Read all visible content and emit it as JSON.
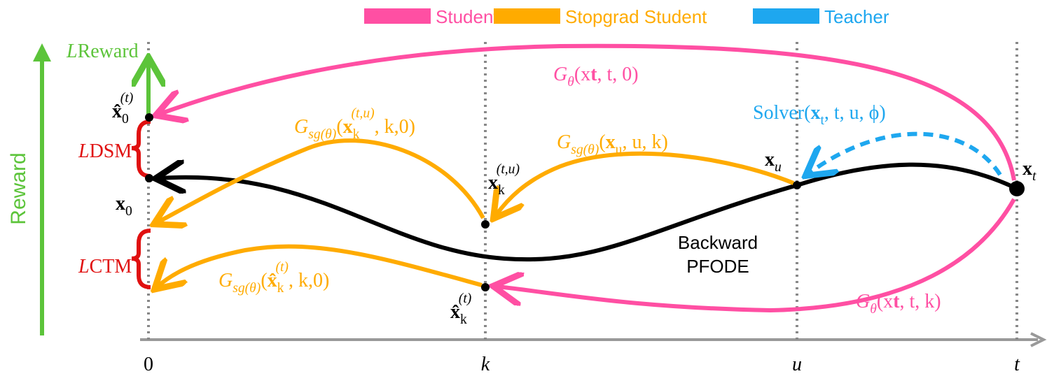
{
  "legend": [
    {
      "name": "Student",
      "color": "#ff4fa3"
    },
    {
      "name": "Stopgrad Student",
      "color": "#ffab00"
    },
    {
      "name": "Teacher",
      "color": "#1ea7ef"
    }
  ],
  "y_axis_label": "Reward",
  "x_axis_labels": [
    "0",
    "k",
    "u",
    "t"
  ],
  "labels": {
    "l_reward": [
      "L",
      "Reward"
    ],
    "x0_hat": [
      "x̂",
      "0",
      "(t)"
    ],
    "l_dsm": [
      "L",
      "DSM"
    ],
    "x0": [
      "x",
      "0"
    ],
    "l_ctm": [
      "L",
      "CTM"
    ],
    "g_theta_top": [
      "G",
      "θ",
      "(",
      "x",
      "t",
      ", t, 0)"
    ],
    "g_sg_k0": [
      "G",
      "sg(θ)",
      "(",
      "x",
      "k",
      "(t,u)",
      ", k,0)"
    ],
    "g_sg_uk": [
      "G",
      "sg(θ)",
      "(",
      "x",
      "u",
      ", u, k)"
    ],
    "xk_tu": [
      "x",
      "k",
      "(t,u)"
    ],
    "solver": [
      "Solver(",
      "x",
      "t",
      ", t, u, ϕ)"
    ],
    "xu": [
      "x",
      "u"
    ],
    "xt": [
      "x",
      "t"
    ],
    "backward": [
      "Backward",
      "PFODE"
    ],
    "g_sg_hat": [
      "G",
      "sg(θ)",
      "(",
      "x̂",
      "k",
      "(t)",
      ", k,0)"
    ],
    "xk_hat": [
      "x̂",
      "k",
      "(t)"
    ],
    "g_theta_bottom": [
      "G",
      "θ",
      "(",
      "x",
      "t",
      ", t, k)"
    ]
  }
}
